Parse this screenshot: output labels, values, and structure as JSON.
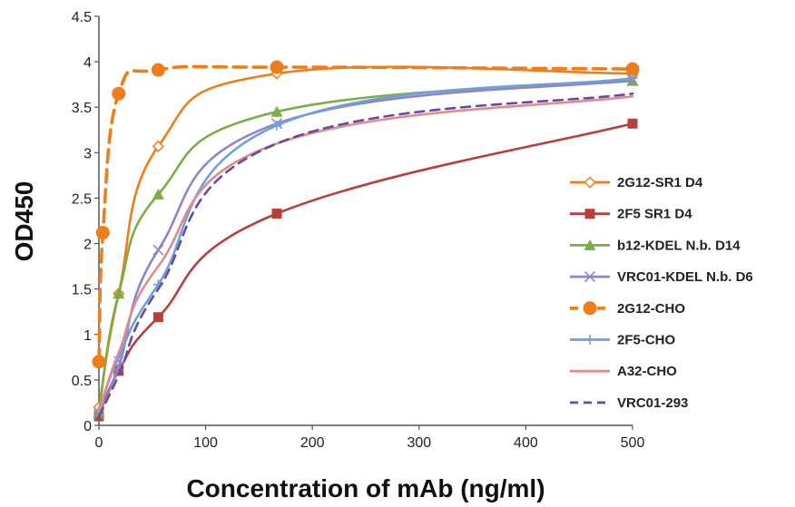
{
  "chart_data": {
    "type": "line",
    "title": "",
    "xlabel": "Concentration of mAb (ng/ml)",
    "ylabel": "OD450",
    "xlim": [
      0,
      500
    ],
    "ylim": [
      0,
      4.5
    ],
    "xticks": [
      0,
      100,
      200,
      300,
      400,
      500
    ],
    "xtick_labels": [
      "0",
      "100",
      "200",
      "300",
      "400",
      "500"
    ],
    "yticks": [
      0,
      0.5,
      1,
      1.5,
      2,
      2.5,
      3,
      3.5,
      4,
      4.5
    ],
    "ytick_labels": [
      "0",
      "0.5",
      "1",
      "1.5",
      "2",
      "2.5",
      "3",
      "3.5",
      "4",
      "4.5"
    ],
    "grid": false,
    "legend_position": "right",
    "series": [
      {
        "name": "2G12-SR1 D4",
        "color": "#F07D1A",
        "dash": "solid",
        "marker": "diamond-open",
        "x": [
          0,
          18.5,
          55.6,
          166.7,
          500
        ],
        "y": [
          0.2,
          1.45,
          3.07,
          3.87,
          3.87
        ]
      },
      {
        "name": "2F5 SR1 D4",
        "color": "#B8403C",
        "dash": "solid",
        "marker": "square",
        "x": [
          0,
          18.5,
          55.6,
          166.7,
          500
        ],
        "y": [
          0.1,
          0.6,
          1.19,
          2.33,
          3.32
        ]
      },
      {
        "name": "b12-KDEL N.b.  D14",
        "color": "#7BAE45",
        "dash": "solid",
        "marker": "triangle",
        "x": [
          0,
          18.5,
          55.6,
          166.7,
          500
        ],
        "y": [
          0.15,
          1.45,
          2.54,
          3.45,
          3.79
        ]
      },
      {
        "name": "VRC01-KDEL N.b. D6",
        "color": "#8E86C9",
        "dash": "solid",
        "marker": "x",
        "x": [
          0,
          18.5,
          55.6,
          166.7,
          500
        ],
        "y": [
          0.12,
          0.65,
          1.93,
          3.32,
          3.8
        ]
      },
      {
        "name": "2G12-CHO",
        "color": "#F07D1A",
        "dash": "dashed",
        "marker": "circle",
        "x": [
          0,
          3.7,
          18.5,
          55.6,
          166.7,
          500
        ],
        "y": [
          0.7,
          2.12,
          3.65,
          3.91,
          3.94,
          3.92
        ]
      },
      {
        "name": "2F5-CHO",
        "color": "#6FA0D8",
        "dash": "solid",
        "marker": "plus",
        "x": [
          0,
          18.5,
          55.6,
          166.7,
          500
        ],
        "y": [
          0.15,
          0.75,
          1.55,
          3.3,
          3.82
        ]
      },
      {
        "name": "A32-CHO",
        "color": "#E08C8C",
        "dash": "solid",
        "marker": "none",
        "x": [
          0,
          18.5,
          55.6,
          166.7,
          500
        ],
        "y": [
          0.15,
          0.8,
          1.75,
          3.1,
          3.62
        ]
      },
      {
        "name": "VRC01-293",
        "color": "#6A4AA0",
        "dash": "dashed",
        "marker": "none",
        "x": [
          0,
          18.5,
          55.6,
          166.7,
          500
        ],
        "y": [
          0.1,
          0.55,
          1.5,
          3.1,
          3.65
        ]
      }
    ]
  }
}
